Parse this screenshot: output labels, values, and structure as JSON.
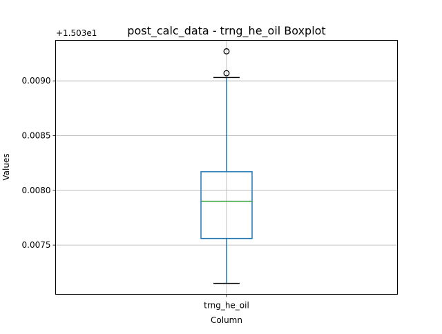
{
  "chart_data": {
    "type": "box",
    "title": "post_calc_data - trng_he_oil Boxplot",
    "xlabel": "Column",
    "ylabel": "Values",
    "offset_label": "+1.503e1",
    "categories": [
      "trng_he_oil"
    ],
    "boxes": [
      {
        "name": "trng_he_oil",
        "whisker_low": 0.00715,
        "q1": 0.00756,
        "median": 0.0079,
        "q3": 0.00817,
        "whisker_high": 0.00903,
        "outliers": [
          0.00907,
          0.00927
        ]
      }
    ],
    "ylim": [
      0.00705,
      0.00937
    ],
    "yticks": [
      0.0075,
      0.008,
      0.0085,
      0.009
    ],
    "ytick_labels": [
      "0.0075",
      "0.0080",
      "0.0085",
      "0.0090"
    ],
    "grid": true,
    "colors": {
      "box": "#1f77b4",
      "median": "#2ca02c",
      "whisker_cap": "#000000",
      "outlier": "#000000",
      "grid": "#b0b0b0"
    }
  }
}
